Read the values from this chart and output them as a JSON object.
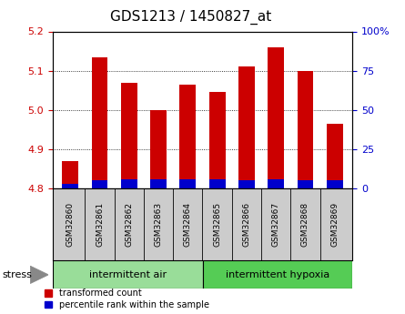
{
  "title": "GDS1213 / 1450827_at",
  "samples": [
    "GSM32860",
    "GSM32861",
    "GSM32862",
    "GSM32863",
    "GSM32864",
    "GSM32865",
    "GSM32866",
    "GSM32867",
    "GSM32868",
    "GSM32869"
  ],
  "transformed_count": [
    4.87,
    5.135,
    5.07,
    5.0,
    5.065,
    5.045,
    5.11,
    5.16,
    5.1,
    4.965
  ],
  "percentile_rank_pct": [
    3,
    5,
    6,
    6,
    6,
    6,
    5,
    6,
    5,
    5
  ],
  "ylim_left": [
    4.8,
    5.2
  ],
  "ylim_right": [
    0,
    100
  ],
  "bar_base": 4.8,
  "bar_color": "#cc0000",
  "blue_color": "#0000cc",
  "group1_label": "intermittent air",
  "group2_label": "intermittent hypoxia",
  "group1_color": "#99dd99",
  "group2_color": "#55cc55",
  "stress_label": "stress",
  "legend_red": "transformed count",
  "legend_blue": "percentile rank within the sample",
  "left_axis_color": "#cc0000",
  "right_axis_color": "#0000cc",
  "yticks_left": [
    4.8,
    4.9,
    5.0,
    5.1,
    5.2
  ],
  "yticks_right": [
    0,
    25,
    50,
    75,
    100
  ],
  "title_fontsize": 11,
  "axis_fontsize": 8,
  "tick_label_fontsize": 6.5,
  "group_fontsize": 8,
  "legend_fontsize": 7,
  "n_group1": 5,
  "n_group2": 5
}
